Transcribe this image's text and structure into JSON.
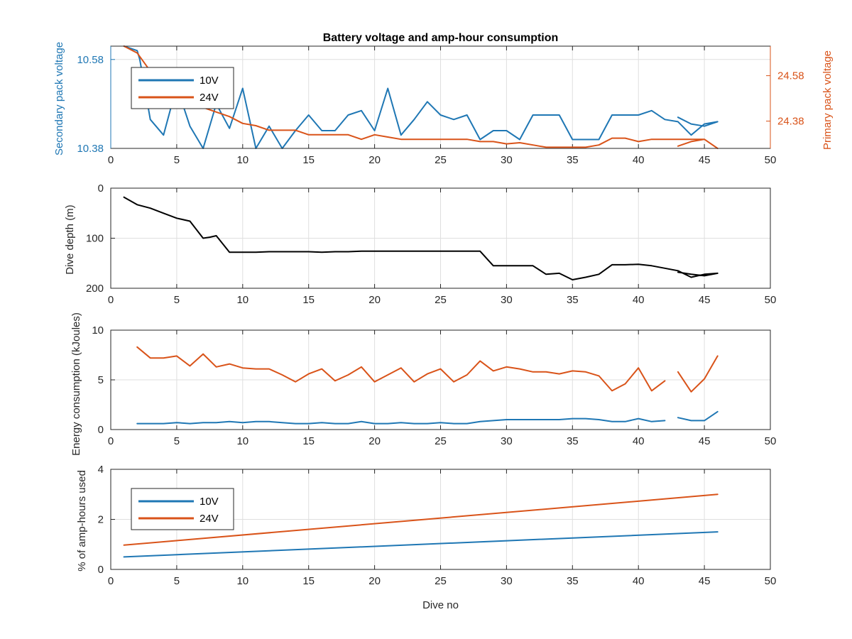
{
  "figure_title": "Battery voltage and amp-hour consumption",
  "colors": {
    "s10V": "#1f77b4",
    "s24V": "#d95319",
    "depth": "#000000",
    "axis": "#262626",
    "grid": "#dfdfdf"
  },
  "chart_data": [
    {
      "type": "line",
      "title": "Battery voltage and amp-hour consumption",
      "xlabel": "",
      "xlim": [
        0,
        50
      ],
      "xticks": [
        0,
        5,
        10,
        15,
        20,
        25,
        30,
        35,
        40,
        45,
        50
      ],
      "ylabel_left": "Secondary pack voltage",
      "ylim_left": [
        10.38,
        10.61
      ],
      "yticks_left": [
        10.38,
        10.58
      ],
      "ylabel_right": "Primary pack voltage",
      "ylim_right": [
        24.26,
        24.71
      ],
      "yticks_right": [
        24.38,
        24.58
      ],
      "grid": true,
      "legend_position": "top-left",
      "series": [
        {
          "name": "10V",
          "axis": "left",
          "color": "#1f77b4",
          "x": [
            1,
            2,
            2.2,
            3,
            4,
            5,
            6,
            7,
            8,
            9,
            10,
            11,
            12,
            13,
            14,
            15,
            16,
            17,
            18,
            19,
            20,
            21,
            22,
            23,
            24,
            25,
            26,
            27,
            28,
            29,
            30,
            31,
            32,
            33,
            34,
            35,
            36,
            37,
            38,
            39,
            40,
            41,
            42,
            43,
            44,
            45,
            46,
            45,
            44,
            43
          ],
          "y": [
            10.61,
            10.6,
            10.58,
            10.445,
            10.41,
            10.52,
            10.43,
            10.38,
            10.48,
            10.425,
            10.515,
            10.38,
            10.43,
            10.38,
            10.42,
            10.455,
            10.42,
            10.42,
            10.455,
            10.465,
            10.42,
            10.515,
            10.41,
            10.445,
            10.485,
            10.455,
            10.445,
            10.455,
            10.4,
            10.42,
            10.42,
            10.4,
            10.455,
            10.455,
            10.455,
            10.4,
            10.4,
            10.4,
            10.455,
            10.455,
            10.455,
            10.465,
            10.445,
            10.44,
            10.41,
            10.435,
            10.44,
            10.43,
            10.435,
            10.45
          ]
        },
        {
          "name": "24V",
          "axis": "right",
          "color": "#d95319",
          "x": [
            1,
            2,
            3,
            4,
            5,
            6,
            7,
            8,
            9,
            10,
            11,
            12,
            13,
            14,
            15,
            16,
            17,
            18,
            19,
            20,
            21,
            22,
            23,
            24,
            25,
            26,
            27,
            28,
            29,
            30,
            31,
            32,
            33,
            34,
            35,
            36,
            37,
            38,
            39,
            40,
            41,
            42,
            43,
            44,
            45,
            46,
            45,
            44,
            43
          ],
          "y": [
            24.71,
            24.68,
            24.6,
            24.53,
            24.5,
            24.46,
            24.44,
            24.42,
            24.4,
            24.37,
            24.36,
            24.34,
            24.34,
            24.34,
            24.32,
            24.32,
            24.32,
            24.32,
            24.3,
            24.32,
            24.31,
            24.3,
            24.3,
            24.3,
            24.3,
            24.3,
            24.3,
            24.29,
            24.29,
            24.28,
            24.285,
            24.275,
            24.265,
            24.265,
            24.265,
            24.265,
            24.275,
            24.305,
            24.305,
            24.29,
            24.3,
            24.3,
            24.3,
            24.3,
            24.3,
            24.26,
            24.3,
            24.29,
            24.27
          ]
        }
      ]
    },
    {
      "type": "line",
      "xlabel": "",
      "ylabel": "Dive depth (m)",
      "xlim": [
        0,
        50
      ],
      "xticks": [
        0,
        5,
        10,
        15,
        20,
        25,
        30,
        35,
        40,
        45,
        50
      ],
      "ylim": [
        0,
        200
      ],
      "yticks": [
        0,
        100,
        200
      ],
      "y_reversed": true,
      "grid": true,
      "series": [
        {
          "color": "#000000",
          "x": [
            1,
            2,
            3,
            4,
            5,
            6,
            7,
            7.5,
            8,
            9,
            10,
            11,
            12,
            13,
            14,
            15,
            16,
            17,
            18,
            19,
            20,
            21,
            22,
            23,
            24,
            25,
            26,
            27,
            28,
            29,
            30,
            31,
            32,
            33,
            34,
            35,
            36,
            37,
            38,
            39,
            40,
            41,
            42,
            43,
            44,
            45,
            46,
            45,
            44,
            43
          ],
          "y": [
            18,
            33,
            40,
            50,
            60,
            66,
            100,
            98,
            95,
            128,
            128,
            128,
            127,
            127,
            127,
            127,
            128,
            127,
            127,
            126,
            126,
            126,
            126,
            126,
            126,
            126,
            126,
            126,
            126,
            155,
            155,
            155,
            155,
            172,
            170,
            183,
            178,
            172,
            153,
            153,
            152,
            155,
            160,
            165,
            178,
            172,
            170,
            175,
            172,
            168
          ]
        }
      ]
    },
    {
      "type": "line",
      "xlabel": "",
      "ylabel": "Energy consumption (kJoules)",
      "xlim": [
        0,
        50
      ],
      "xticks": [
        0,
        5,
        10,
        15,
        20,
        25,
        30,
        35,
        40,
        45,
        50
      ],
      "ylim": [
        0,
        10
      ],
      "yticks": [
        0,
        5,
        10
      ],
      "grid": true,
      "series": [
        {
          "color": "#d95319",
          "x": [
            2,
            3,
            4,
            5,
            6,
            7,
            8,
            9,
            10,
            11,
            12,
            13,
            14,
            15,
            16,
            17,
            18,
            19,
            20,
            21,
            22,
            23,
            24,
            25,
            26,
            27,
            28,
            29,
            30,
            31,
            32,
            33,
            34,
            35,
            36,
            37,
            38,
            39,
            40,
            41,
            42,
            null,
            43,
            44,
            45,
            46
          ],
          "y": [
            8.3,
            7.2,
            7.2,
            7.4,
            6.4,
            7.6,
            6.3,
            6.6,
            6.2,
            6.1,
            6.1,
            5.5,
            4.8,
            5.6,
            6.1,
            4.9,
            5.5,
            6.3,
            4.8,
            5.5,
            6.2,
            4.8,
            5.6,
            6.1,
            4.8,
            5.5,
            6.9,
            5.9,
            6.3,
            6.1,
            5.8,
            5.8,
            5.6,
            5.9,
            5.8,
            5.4,
            3.9,
            4.6,
            6.2,
            3.9,
            4.9,
            null,
            5.8,
            3.8,
            5.1,
            7.4
          ]
        },
        {
          "color": "#1f77b4",
          "x": [
            2,
            3,
            4,
            5,
            6,
            7,
            8,
            9,
            10,
            11,
            12,
            13,
            14,
            15,
            16,
            17,
            18,
            19,
            20,
            21,
            22,
            23,
            24,
            25,
            26,
            27,
            28,
            29,
            30,
            31,
            32,
            33,
            34,
            35,
            36,
            37,
            38,
            39,
            40,
            41,
            42,
            null,
            43,
            44,
            45,
            46
          ],
          "y": [
            0.6,
            0.6,
            0.6,
            0.7,
            0.6,
            0.7,
            0.7,
            0.8,
            0.7,
            0.8,
            0.8,
            0.7,
            0.6,
            0.6,
            0.7,
            0.6,
            0.6,
            0.8,
            0.6,
            0.6,
            0.7,
            0.6,
            0.6,
            0.7,
            0.6,
            0.6,
            0.8,
            0.9,
            1.0,
            1.0,
            1.0,
            1.0,
            1.0,
            1.1,
            1.1,
            1.0,
            0.8,
            0.8,
            1.1,
            0.8,
            0.9,
            null,
            1.2,
            0.9,
            0.9,
            1.8
          ]
        }
      ]
    },
    {
      "type": "line",
      "xlabel": "Dive no",
      "ylabel": "% of amp-hours used",
      "xlim": [
        0,
        50
      ],
      "xticks": [
        0,
        5,
        10,
        15,
        20,
        25,
        30,
        35,
        40,
        45,
        50
      ],
      "ylim": [
        0,
        4
      ],
      "yticks": [
        0,
        2,
        4
      ],
      "grid": true,
      "legend_position": "left",
      "series": [
        {
          "name": "10V",
          "color": "#1f77b4",
          "x": [
            1,
            46
          ],
          "y": [
            0.5,
            1.5
          ]
        },
        {
          "name": "24V",
          "color": "#d95319",
          "x": [
            1,
            46
          ],
          "y": [
            0.97,
            3.0
          ]
        }
      ]
    }
  ]
}
